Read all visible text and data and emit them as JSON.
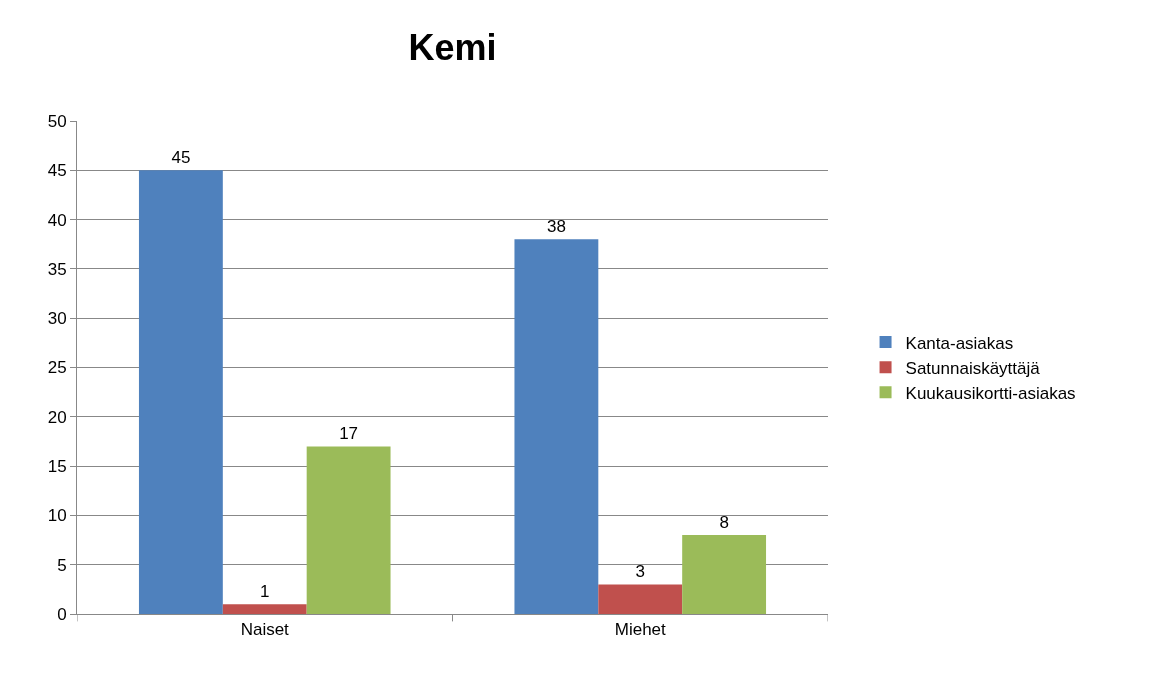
{
  "chart_data": {
    "type": "bar",
    "title": "Kemi",
    "categories": [
      "Naiset",
      "Miehet"
    ],
    "series": [
      {
        "name": "Kanta-asiakas",
        "color": "#4f81bd",
        "values": [
          45,
          38
        ]
      },
      {
        "name": "Satunnaiskäyttäjä",
        "color": "#c0504d",
        "values": [
          1,
          3
        ]
      },
      {
        "name": "Kuukausikortti-asiakas",
        "color": "#9bbb59",
        "values": [
          17,
          8
        ]
      }
    ],
    "ylim": [
      0,
      50
    ],
    "yticks": [
      0,
      5,
      10,
      15,
      20,
      25,
      30,
      35,
      40,
      45,
      50
    ],
    "grid": "y",
    "legend": "right",
    "data_labels": true
  }
}
